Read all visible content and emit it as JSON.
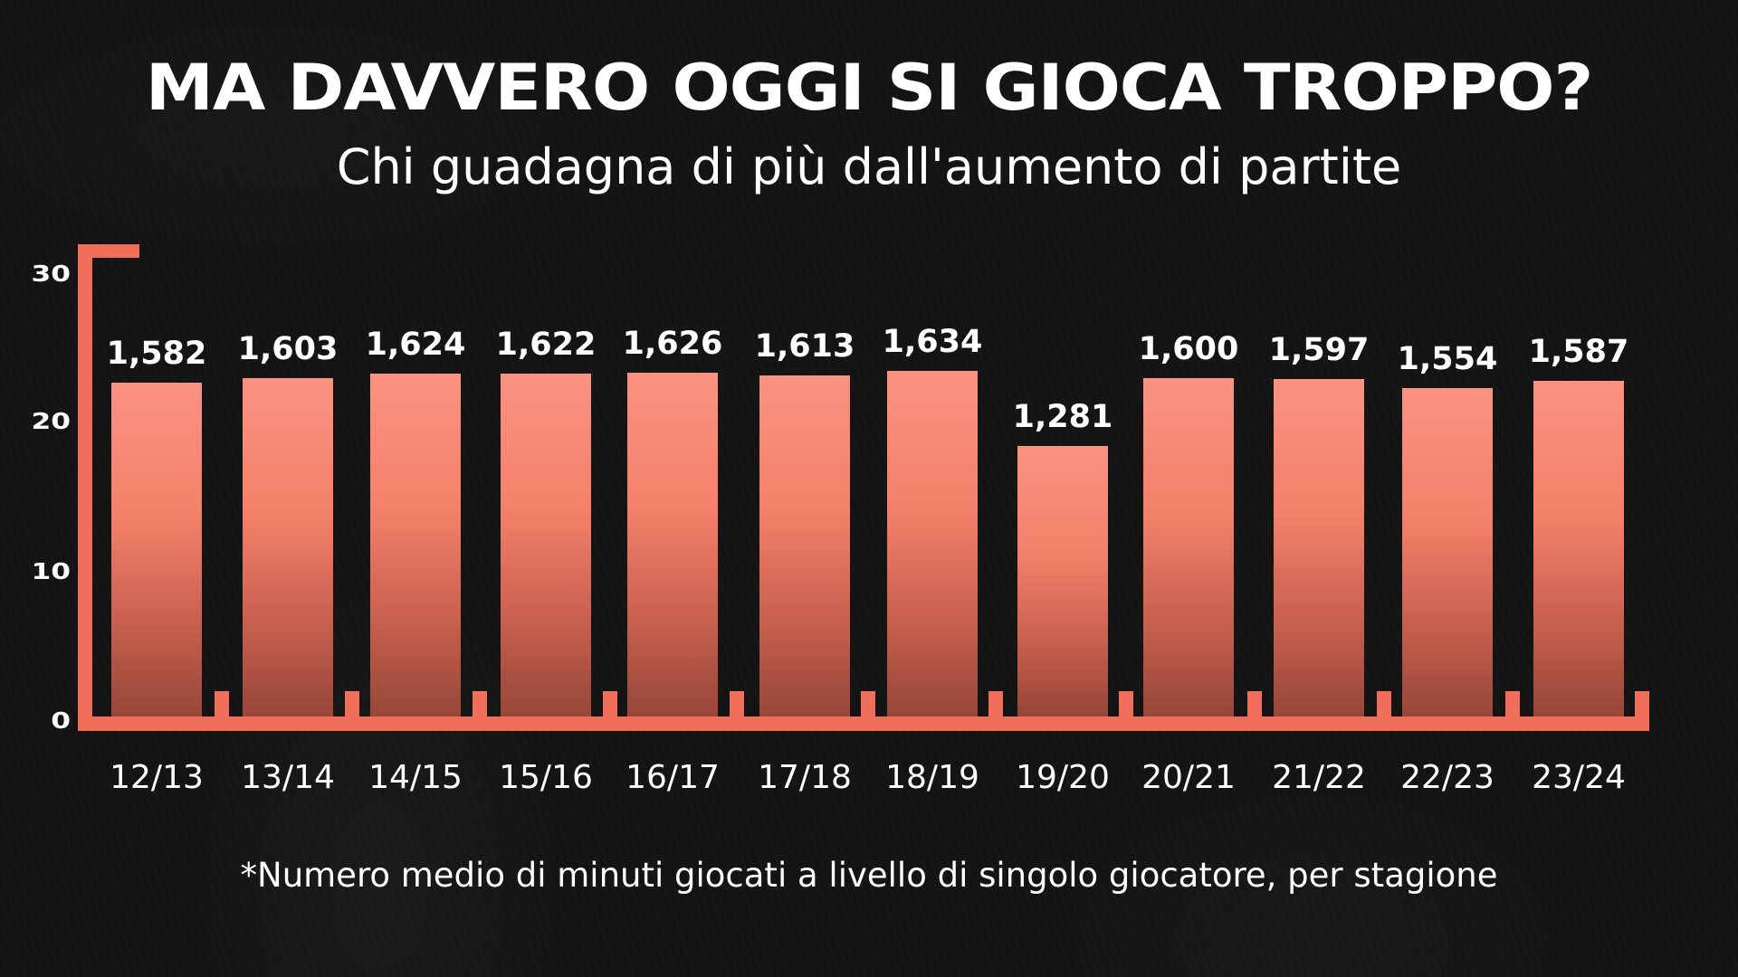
{
  "header": {
    "title": "MA DAVVERO OGGI SI GIOCA TROPPO?",
    "subtitle": "Chi guadagna di più dall'aumento di partite"
  },
  "footnote": "*Numero medio di minuti giocati a livello di singolo giocatore, per stagione",
  "colors": {
    "background": "#141414",
    "axis": "#ef6f5a",
    "bar_top": "#fa9281",
    "bar_bottom": "#964639",
    "text": "#ffffff"
  },
  "chart_data": {
    "type": "bar",
    "title": "MA DAVVERO OGGI SI GIOCA TROPPO?",
    "subtitle": "Chi guadagna di più dall'aumento di partite",
    "xlabel": "",
    "ylabel": "",
    "note": "*Numero medio di minuti giocati a livello di singolo giocatore, per stagione",
    "categories": [
      "12/13",
      "13/14",
      "14/15",
      "15/16",
      "16/17",
      "17/18",
      "18/19",
      "19/20",
      "20/21",
      "21/22",
      "22/23",
      "23/24"
    ],
    "values": [
      1582,
      1603,
      1624,
      1622,
      1626,
      1613,
      1634,
      1281,
      1600,
      1597,
      1554,
      1587
    ],
    "value_labels": [
      "1,582",
      "1,603",
      "1,624",
      "1,622",
      "1,626",
      "1,613",
      "1,634",
      "1,281",
      "1,600",
      "1,597",
      "1,554",
      "1,587"
    ],
    "y_ticks": [
      "0",
      "10",
      "20",
      "30"
    ],
    "ylim": [
      0,
      30
    ],
    "grid": false,
    "legend": null
  }
}
